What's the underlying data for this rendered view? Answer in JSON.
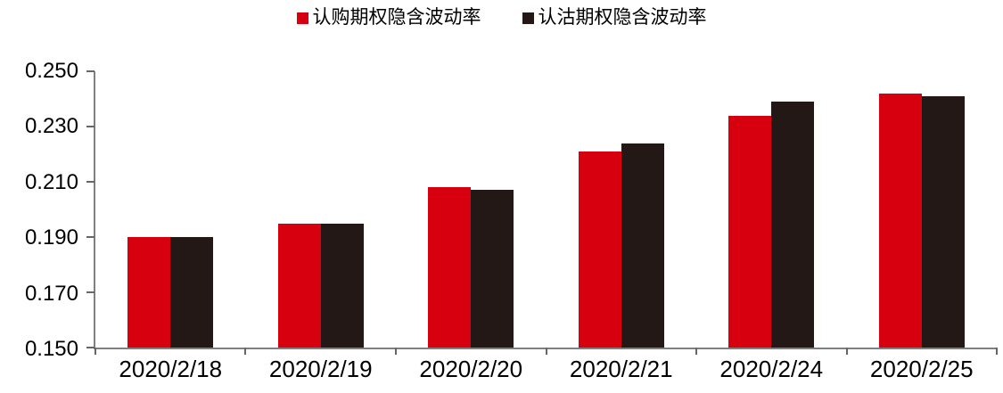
{
  "page": {
    "background_color": "#ffffff",
    "text_color": "#000000",
    "axis_color": "#7f7f7f"
  },
  "chart_data": {
    "type": "bar",
    "title": "",
    "categories": [
      "2020/2/18",
      "2020/2/19",
      "2020/2/20",
      "2020/2/21",
      "2020/2/24",
      "2020/2/25"
    ],
    "series": [
      {
        "name": "认购期权隐含波动率",
        "color": "#d7000f",
        "values": [
          0.19,
          0.195,
          0.208,
          0.221,
          0.234,
          0.242
        ]
      },
      {
        "name": "认沽期权隐含波动率",
        "color": "#231815",
        "values": [
          0.19,
          0.195,
          0.207,
          0.224,
          0.239,
          0.241
        ]
      }
    ],
    "ylim": [
      0.15,
      0.25
    ],
    "y_tick_labels": [
      "0.250",
      "0.230",
      "0.210",
      "0.190",
      "0.170",
      "0.150"
    ],
    "y_tick_values": [
      0.25,
      0.23,
      0.21,
      0.19,
      0.17,
      0.15
    ],
    "xlabel": "",
    "ylabel": "",
    "grid": false,
    "legend_position": "top"
  }
}
